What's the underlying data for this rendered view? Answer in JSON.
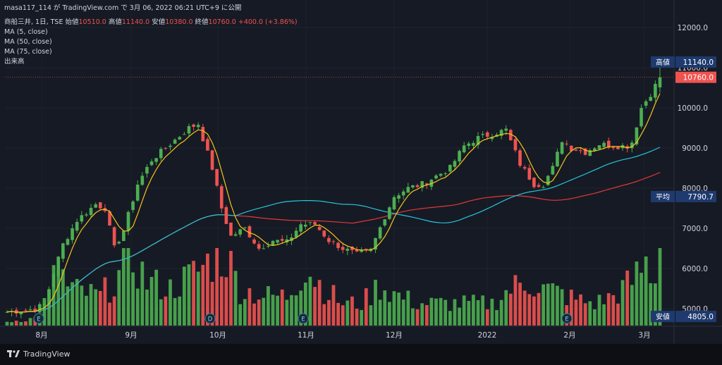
{
  "top_caption": "masa117_114 が TradingView.com で 3月 06, 2022 06:21 UTC+9 に公開",
  "legend": {
    "symbol": "商船三井, 1日, TSE",
    "open_label": "始値",
    "open": "10510.0",
    "high_label": "高値",
    "high": "11140.0",
    "low_label": "安値",
    "low": "10380.0",
    "close_label": "終値",
    "close": "10760.0",
    "change": "+400.0 (+3.86%)",
    "ma5": "MA (5, close)",
    "ma50": "MA (50, close)",
    "ma75": "MA (75, close)",
    "volume": "出来高"
  },
  "footer": {
    "brand": "TradingView"
  },
  "colors": {
    "up": "#4caf50",
    "down": "#ef5350",
    "ma5": "#f5c518",
    "ma50": "#26c6da",
    "ma75": "#e53935",
    "bg": "#161a25"
  },
  "chart_data": {
    "type": "candlestick",
    "title": "商船三井, 1日, TSE",
    "ylim": [
      4700,
      12200
    ],
    "y_ticks": [
      5000,
      6000,
      7000,
      8000,
      9000,
      10000,
      11000,
      12000
    ],
    "y_tick_labels": [
      "5000.0",
      "6000.0",
      "7000.0",
      "8000.0",
      "9000.0",
      "10000.0",
      "11000.0",
      "12000.0"
    ],
    "x_tick_labels": [
      "8月",
      "9月",
      "10月",
      "11月",
      "12月",
      "2022",
      "2月",
      "3月"
    ],
    "price_tags": [
      {
        "label": "高値",
        "value": 11140.0,
        "text": "11140.0"
      },
      {
        "label": "",
        "value": 10760.0,
        "text": "10760.0"
      },
      {
        "label": "平均",
        "value": 7790.7,
        "text": "7790.7"
      },
      {
        "label": "安値",
        "value": 4805.0,
        "text": "4805.0"
      }
    ],
    "event_markers": [
      {
        "label": "E",
        "month": "8月"
      },
      {
        "label": "D",
        "month": "10月"
      },
      {
        "label": "E",
        "month": "11月"
      },
      {
        "label": "E",
        "month": "2月"
      }
    ],
    "close_anchors": [
      [
        0,
        4920
      ],
      [
        4,
        4960
      ],
      [
        6,
        5000
      ],
      [
        8,
        5100
      ],
      [
        10,
        5900
      ],
      [
        12,
        6600
      ],
      [
        15,
        7200
      ],
      [
        19,
        7600
      ],
      [
        21,
        7500
      ],
      [
        23,
        6500
      ],
      [
        25,
        6950
      ],
      [
        28,
        8100
      ],
      [
        31,
        8700
      ],
      [
        34,
        9000
      ],
      [
        38,
        9400
      ],
      [
        39,
        9500
      ],
      [
        41,
        9600
      ],
      [
        44,
        8500
      ],
      [
        46,
        7500
      ],
      [
        48,
        6800
      ],
      [
        51,
        7000
      ],
      [
        54,
        6500
      ],
      [
        57,
        6700
      ],
      [
        60,
        6650
      ],
      [
        63,
        7100
      ],
      [
        66,
        7100
      ],
      [
        69,
        6700
      ],
      [
        72,
        6500
      ],
      [
        75,
        6350
      ],
      [
        78,
        6450
      ],
      [
        81,
        7300
      ],
      [
        83,
        7800
      ],
      [
        86,
        8000
      ],
      [
        89,
        8100
      ],
      [
        92,
        8300
      ],
      [
        95,
        8500
      ],
      [
        98,
        9050
      ],
      [
        101,
        9250
      ],
      [
        104,
        9350
      ],
      [
        107,
        9450
      ],
      [
        110,
        8600
      ],
      [
        113,
        8100
      ],
      [
        115,
        8100
      ],
      [
        117,
        8500
      ],
      [
        119,
        9200
      ],
      [
        121,
        9000
      ],
      [
        124,
        8900
      ],
      [
        127,
        9100
      ],
      [
        130,
        9050
      ],
      [
        133,
        9050
      ],
      [
        134,
        9150
      ],
      [
        136,
        10000
      ],
      [
        138,
        10350
      ],
      [
        140,
        10760
      ]
    ],
    "volume_anchors": [
      [
        0,
        0.05
      ],
      [
        6,
        0.1
      ],
      [
        9,
        0.4
      ],
      [
        11,
        0.85
      ],
      [
        13,
        0.5
      ],
      [
        20,
        0.4
      ],
      [
        23,
        0.6
      ],
      [
        27,
        0.9
      ],
      [
        30,
        0.6
      ],
      [
        35,
        0.5
      ],
      [
        40,
        0.7
      ],
      [
        44,
        0.9
      ],
      [
        47,
        0.95
      ],
      [
        50,
        0.5
      ],
      [
        55,
        0.4
      ],
      [
        60,
        0.4
      ],
      [
        64,
        0.8
      ],
      [
        68,
        0.5
      ],
      [
        72,
        0.3
      ],
      [
        76,
        0.3
      ],
      [
        80,
        0.55
      ],
      [
        84,
        0.4
      ],
      [
        88,
        0.3
      ],
      [
        92,
        0.3
      ],
      [
        96,
        0.3
      ],
      [
        100,
        0.3
      ],
      [
        104,
        0.3
      ],
      [
        108,
        0.5
      ],
      [
        112,
        0.6
      ],
      [
        115,
        0.5
      ],
      [
        118,
        0.45
      ],
      [
        122,
        0.35
      ],
      [
        126,
        0.3
      ],
      [
        130,
        0.4
      ],
      [
        134,
        0.6
      ],
      [
        137,
        0.85
      ],
      [
        139,
        0.6
      ],
      [
        140,
        1.0
      ]
    ]
  }
}
